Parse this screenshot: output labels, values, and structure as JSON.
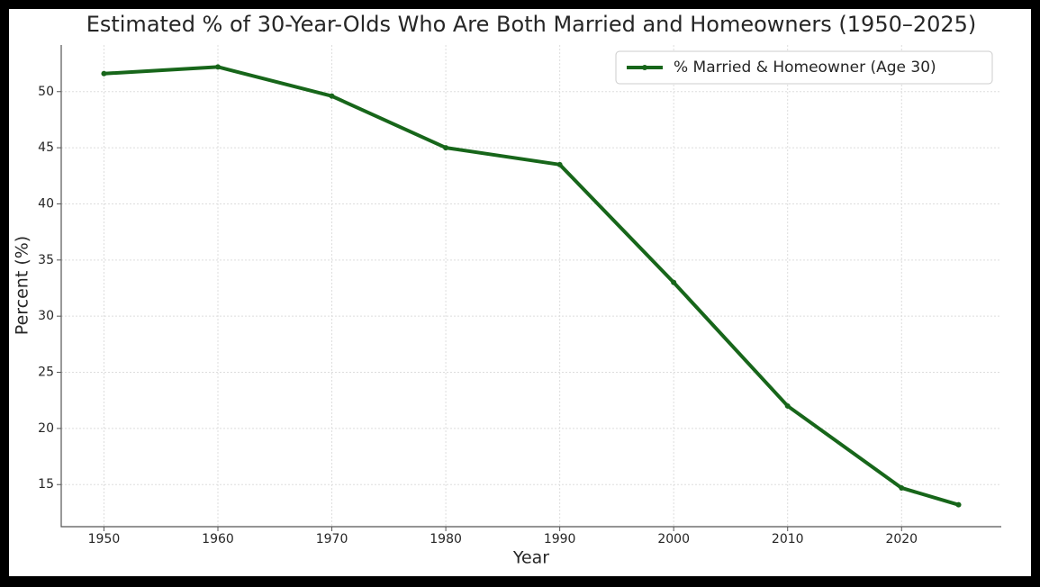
{
  "chart_data": {
    "type": "line",
    "title": "Estimated % of 30-Year-Olds Who Are Both Married and Homeowners (1950–2025)",
    "x_label": "Year",
    "y_label": "Percent (%)",
    "x": [
      1950,
      1960,
      1970,
      1980,
      1990,
      2000,
      2010,
      2020,
      2025
    ],
    "series": [
      {
        "name": "% Married & Homeowner (Age 30)",
        "color": "#17661a",
        "values": [
          51.6,
          52.2,
          49.6,
          45,
          43.5,
          33,
          22,
          14.7,
          13.2
        ]
      }
    ],
    "xlim": [
      1946.25,
      2028.75
    ],
    "ylim": [
      11.25,
      54.15
    ],
    "xticks": [
      1950,
      1960,
      1970,
      1980,
      1990,
      2000,
      2010,
      2020
    ],
    "yticks": [
      15,
      20,
      25,
      30,
      35,
      40,
      45,
      50
    ],
    "grid": true,
    "legend": "upper-right"
  }
}
